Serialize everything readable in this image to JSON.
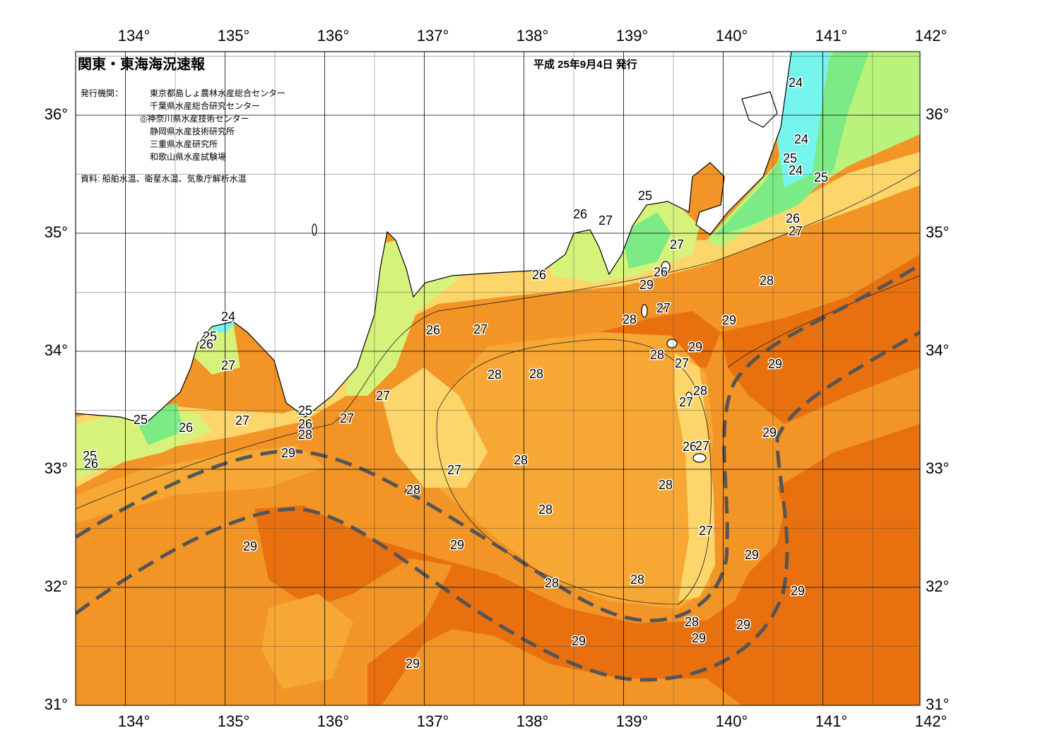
{
  "header": {
    "title": "関東・東海海況速報",
    "date": "平成 25年9月4日 発行",
    "issuer_label": "発行機関：",
    "issuers": [
      "東京都島しょ農林水産総合センター",
      "千葉県水産総合研究センター",
      "◎神奈川県水産技術センター",
      "静岡県水産技術研究所",
      "三重県水産研究所",
      "和歌山県水産試験場"
    ],
    "source": "資料: 船舶水温、衛星水温、気象庁解析水温"
  },
  "axes": {
    "longitude": [
      "134°",
      "135°",
      "136°",
      "137°",
      "138°",
      "139°",
      "140°",
      "141°",
      "142°"
    ],
    "latitude": [
      "36°",
      "35°",
      "34°",
      "33°",
      "32°",
      "31°"
    ]
  },
  "contour_labels": [
    24,
    24,
    25,
    24,
    25,
    25,
    26,
    27,
    26,
    27,
    27,
    26,
    29,
    28,
    26,
    27,
    28,
    29,
    24,
    25,
    26,
    26,
    27,
    29,
    28,
    27,
    29,
    27,
    28,
    28,
    28,
    27,
    27,
    25,
    26,
    28,
    27,
    27,
    25,
    26,
    29,
    26,
    27,
    25,
    26,
    29,
    28,
    27,
    28,
    28,
    28,
    27,
    29,
    29,
    29,
    28,
    28,
    29,
    28,
    29,
    29,
    29,
    29
  ]
}
